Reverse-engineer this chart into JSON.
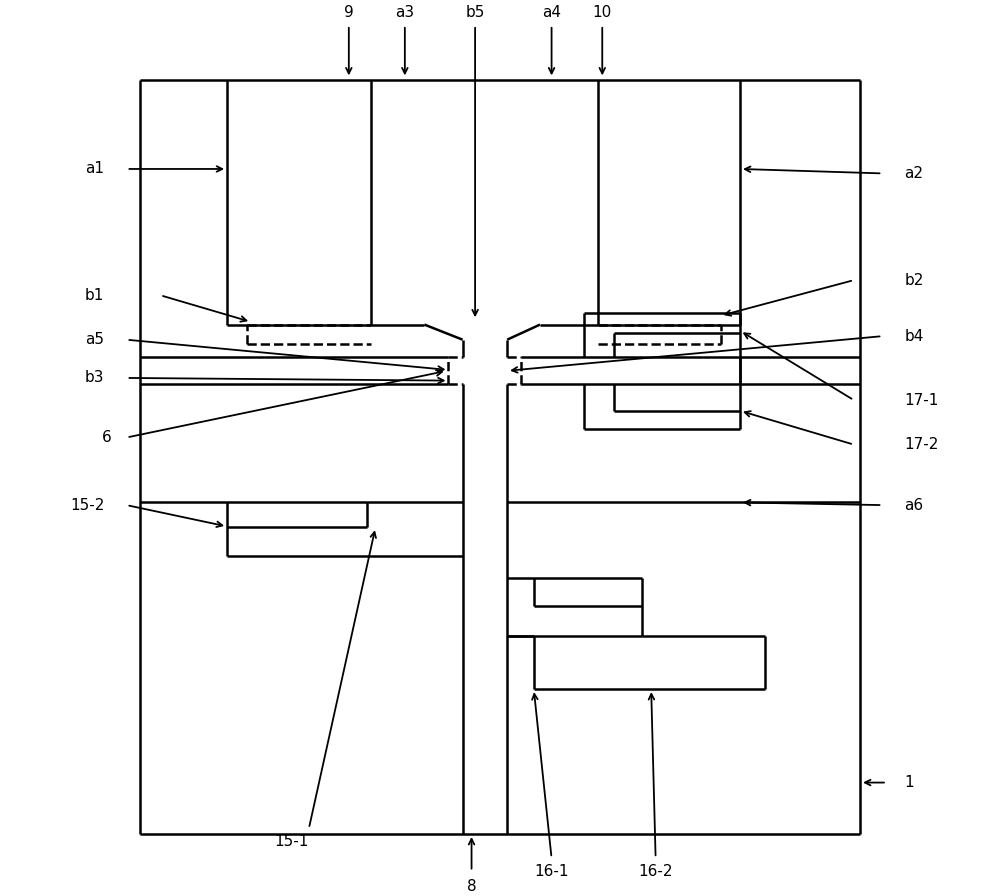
{
  "figsize": [
    10.0,
    8.96
  ],
  "dpi": 100,
  "lw": 1.8,
  "fs": 11,
  "labels": {
    "1": [
      0.955,
      0.12,
      "left",
      "center"
    ],
    "6": [
      0.063,
      0.508,
      "right",
      "center"
    ],
    "8": [
      0.468,
      0.012,
      "center",
      "top"
    ],
    "9": [
      0.33,
      0.978,
      "center",
      "bottom"
    ],
    "10": [
      0.615,
      0.978,
      "center",
      "bottom"
    ],
    "a1": [
      0.055,
      0.81,
      "right",
      "center"
    ],
    "a2": [
      0.955,
      0.805,
      "left",
      "center"
    ],
    "a3": [
      0.393,
      0.978,
      "center",
      "bottom"
    ],
    "a4": [
      0.558,
      0.978,
      "center",
      "bottom"
    ],
    "a5": [
      0.055,
      0.618,
      "right",
      "center"
    ],
    "a6": [
      0.955,
      0.432,
      "left",
      "center"
    ],
    "b1": [
      0.055,
      0.668,
      "right",
      "center"
    ],
    "b2": [
      0.955,
      0.685,
      "left",
      "center"
    ],
    "b3": [
      0.055,
      0.575,
      "right",
      "center"
    ],
    "b4": [
      0.955,
      0.622,
      "left",
      "center"
    ],
    "b5": [
      0.472,
      0.978,
      "center",
      "bottom"
    ],
    "15-1": [
      0.265,
      0.062,
      "center",
      "top"
    ],
    "15-2": [
      0.055,
      0.432,
      "right",
      "center"
    ],
    "16-1": [
      0.558,
      0.028,
      "center",
      "top"
    ],
    "16-2": [
      0.675,
      0.028,
      "center",
      "top"
    ],
    "17-1": [
      0.955,
      0.55,
      "left",
      "center"
    ],
    "17-2": [
      0.955,
      0.5,
      "left",
      "center"
    ]
  }
}
